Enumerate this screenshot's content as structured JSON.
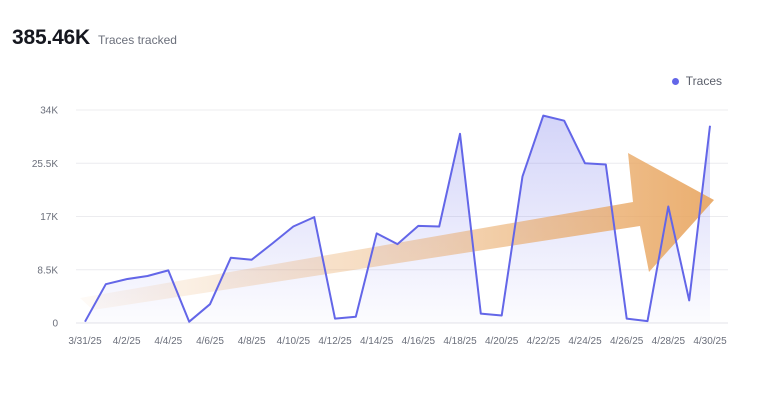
{
  "header": {
    "total": "385.46K",
    "label": "Traces tracked"
  },
  "colors": {
    "series": "#6366e8",
    "fill": "#6366e8",
    "arrow": "#e8a55f",
    "grid": "#ececef"
  },
  "chart_data": {
    "type": "area",
    "legend_position": "top-right",
    "grid": true,
    "ylim": [
      0,
      34000
    ],
    "yticks": [
      {
        "value": 0,
        "label": "0"
      },
      {
        "value": 8500,
        "label": "8.5K"
      },
      {
        "value": 17000,
        "label": "17K"
      },
      {
        "value": 25500,
        "label": "25.5K"
      },
      {
        "value": 34000,
        "label": "34K"
      }
    ],
    "x": [
      "3/31/25",
      "4/1/25",
      "4/2/25",
      "4/3/25",
      "4/4/25",
      "4/5/25",
      "4/6/25",
      "4/7/25",
      "4/8/25",
      "4/9/25",
      "4/10/25",
      "4/11/25",
      "4/12/25",
      "4/13/25",
      "4/14/25",
      "4/15/25",
      "4/16/25",
      "4/17/25",
      "4/18/25",
      "4/19/25",
      "4/20/25",
      "4/21/25",
      "4/22/25",
      "4/23/25",
      "4/24/25",
      "4/25/25",
      "4/26/25",
      "4/27/25",
      "4/28/25",
      "4/29/25",
      "4/30/25"
    ],
    "xtick_labels": [
      "3/31/25",
      "4/2/25",
      "4/4/25",
      "4/6/25",
      "4/8/25",
      "4/10/25",
      "4/12/25",
      "4/14/25",
      "4/16/25",
      "4/18/25",
      "4/20/25",
      "4/22/25",
      "4/24/25",
      "4/26/25",
      "4/28/25",
      "4/30/25"
    ],
    "series": [
      {
        "name": "Traces",
        "values": [
          200,
          6200,
          7000,
          7500,
          8400,
          200,
          3000,
          10400,
          10100,
          12700,
          15400,
          16900,
          700,
          1000,
          14300,
          12600,
          15500,
          15400,
          30200,
          1500,
          1200,
          23400,
          33100,
          32300,
          25500,
          25300,
          700,
          300,
          18600,
          3600,
          31500
        ]
      }
    ],
    "annotation": "upward trend arrow"
  }
}
